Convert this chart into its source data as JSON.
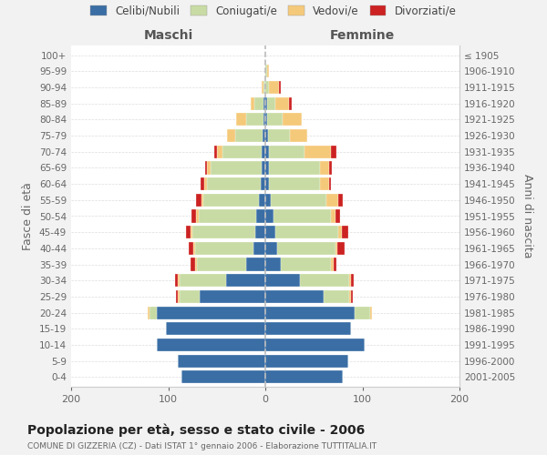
{
  "age_groups": [
    "100+",
    "95-99",
    "90-94",
    "85-89",
    "80-84",
    "75-79",
    "70-74",
    "65-69",
    "60-64",
    "55-59",
    "50-54",
    "45-49",
    "40-44",
    "35-39",
    "30-34",
    "25-29",
    "20-24",
    "15-19",
    "10-14",
    "5-9",
    "0-4"
  ],
  "birth_years": [
    "≤ 1905",
    "1906-1910",
    "1911-1915",
    "1916-1920",
    "1921-1925",
    "1926-1930",
    "1931-1935",
    "1936-1940",
    "1941-1945",
    "1946-1950",
    "1951-1955",
    "1956-1960",
    "1961-1965",
    "1966-1970",
    "1971-1975",
    "1976-1980",
    "1981-1985",
    "1986-1990",
    "1991-1995",
    "1996-2000",
    "2001-2005"
  ],
  "males_celibi": [
    0,
    0,
    0,
    2,
    2,
    3,
    4,
    4,
    5,
    7,
    9,
    10,
    12,
    20,
    40,
    68,
    112,
    102,
    112,
    90,
    86
  ],
  "males_coniugati": [
    0,
    0,
    2,
    9,
    18,
    28,
    40,
    52,
    55,
    57,
    60,
    65,
    60,
    50,
    48,
    20,
    7,
    0,
    0,
    0,
    0
  ],
  "males_vedovi": [
    0,
    0,
    2,
    4,
    10,
    8,
    6,
    4,
    3,
    2,
    2,
    2,
    2,
    2,
    2,
    2,
    2,
    0,
    0,
    0,
    0
  ],
  "males_divorziati": [
    0,
    0,
    0,
    0,
    0,
    0,
    3,
    2,
    4,
    5,
    5,
    5,
    5,
    5,
    3,
    2,
    0,
    0,
    0,
    0,
    0
  ],
  "females_nubili": [
    0,
    0,
    0,
    2,
    2,
    3,
    4,
    4,
    4,
    6,
    8,
    10,
    12,
    16,
    36,
    60,
    92,
    88,
    102,
    85,
    80
  ],
  "females_coniugate": [
    0,
    2,
    4,
    8,
    16,
    22,
    36,
    52,
    52,
    57,
    60,
    65,
    60,
    52,
    50,
    26,
    16,
    0,
    0,
    0,
    0
  ],
  "females_vedove": [
    0,
    2,
    10,
    14,
    20,
    18,
    28,
    10,
    10,
    12,
    4,
    4,
    2,
    2,
    2,
    2,
    2,
    0,
    0,
    0,
    0
  ],
  "females_divorziate": [
    0,
    0,
    2,
    3,
    0,
    0,
    5,
    3,
    2,
    5,
    5,
    6,
    8,
    3,
    3,
    2,
    0,
    0,
    0,
    0,
    0
  ],
  "color_celibi": "#3a6ea5",
  "color_coniugati": "#c8dba4",
  "color_vedovi": "#f5c97a",
  "color_divorziati": "#cc2222",
  "title": "Popolazione per età, sesso e stato civile - 2006",
  "subtitle": "COMUNE DI GIZZERIA (CZ) - Dati ISTAT 1° gennaio 2006 - Elaborazione TUTTITALIA.IT",
  "label_maschi": "Maschi",
  "label_femmine": "Femmine",
  "ylabel_left": "Fasce di età",
  "ylabel_right": "Anni di nascita",
  "xlim": 200,
  "legend_labels": [
    "Celibi/Nubili",
    "Coniugati/e",
    "Vedovi/e",
    "Divorziati/e"
  ],
  "bg_color": "#f2f2f2",
  "plot_bg_color": "#ffffff"
}
